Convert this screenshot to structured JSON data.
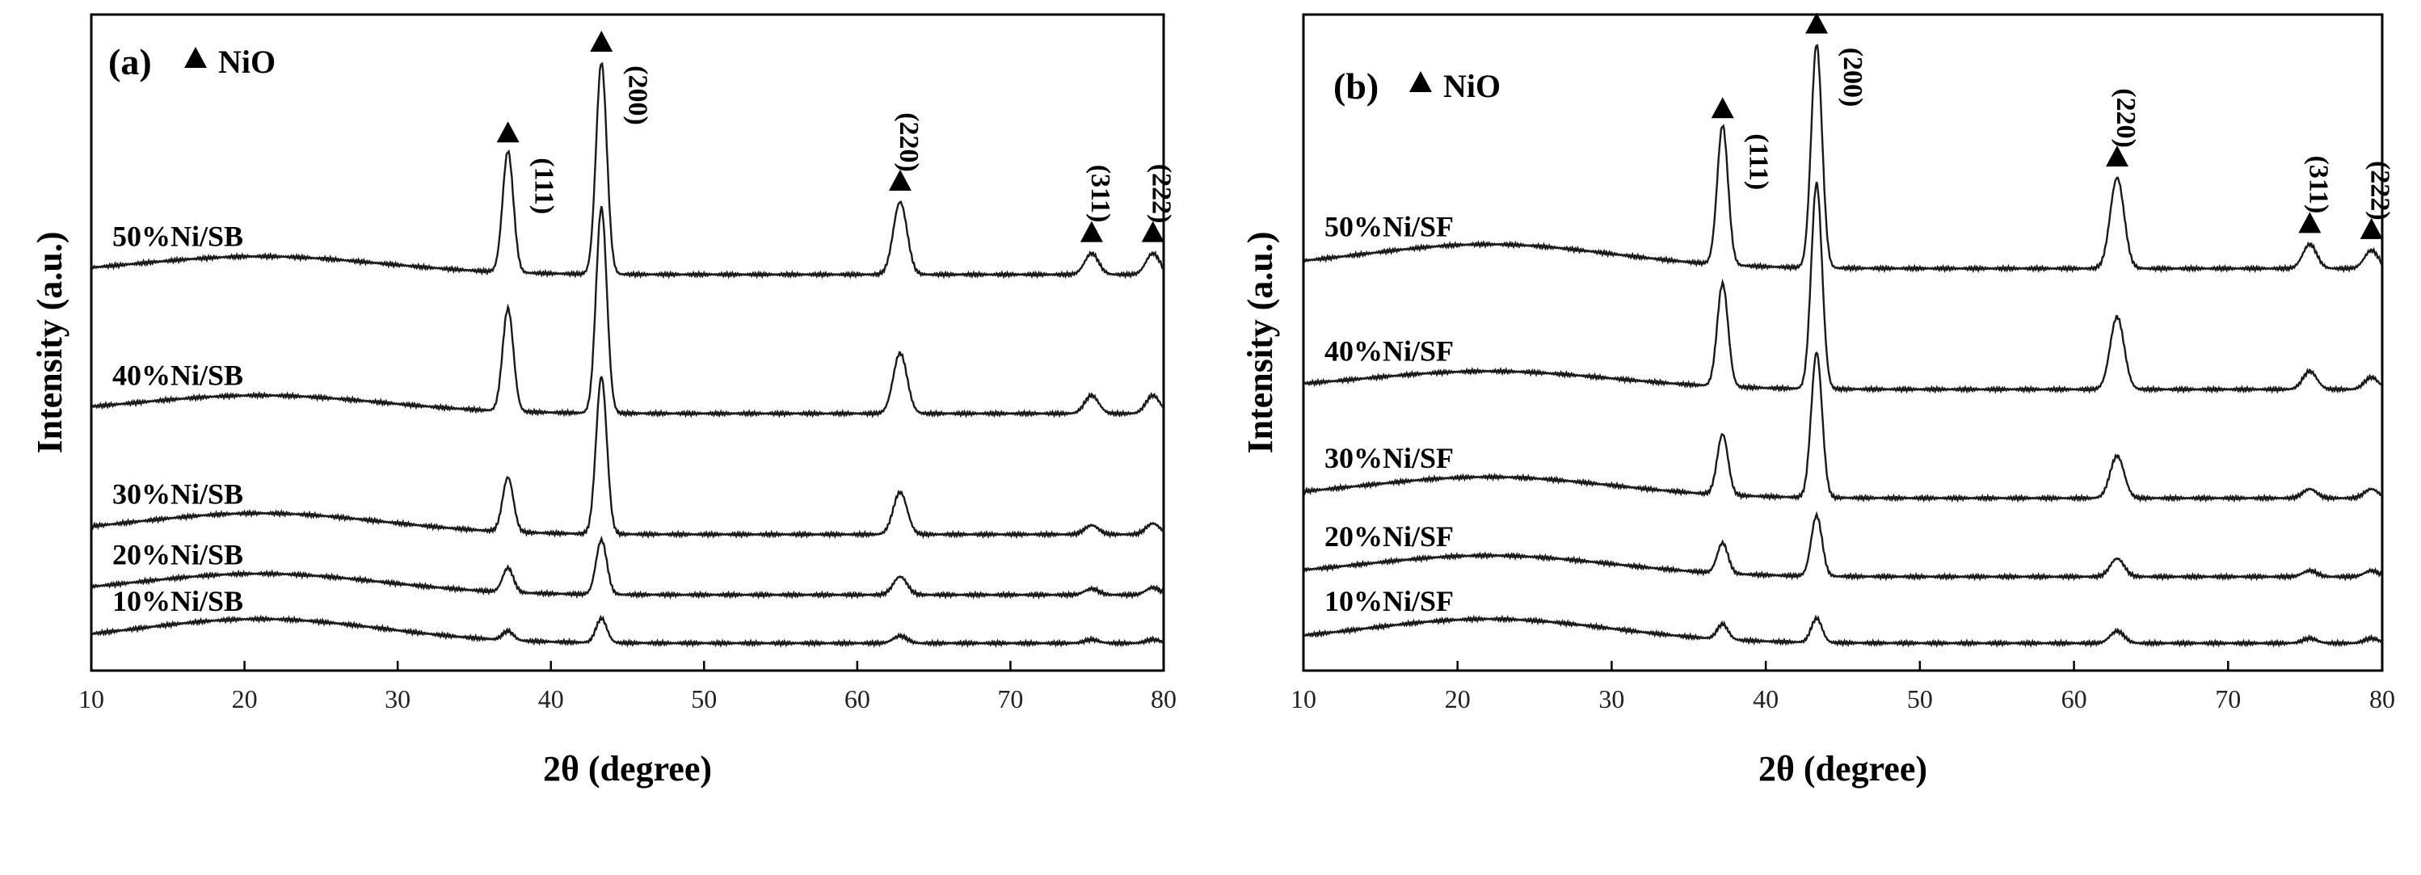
{
  "colors": {
    "line": "#1a1a1a",
    "axis": "#000000",
    "text": "#000000"
  },
  "x_axis": {
    "ticks": [
      10,
      20,
      30,
      40,
      50,
      60,
      70,
      80
    ]
  },
  "peaks": [
    {
      "hkl": "(111)",
      "two_theta": 37.2,
      "width": 0.35
    },
    {
      "hkl": "(200)",
      "two_theta": 43.3,
      "width": 0.35
    },
    {
      "hkl": "(220)",
      "two_theta": 62.8,
      "width": 0.45
    },
    {
      "hkl": "(311)",
      "two_theta": 75.3,
      "width": 0.45
    },
    {
      "hkl": "(222)",
      "two_theta": 79.3,
      "width": 0.45
    }
  ],
  "chart_data": [
    {
      "type": "line",
      "panel_label": "(a)",
      "legend_label": "NiO",
      "xlabel": "2θ (degree)",
      "ylabel": "Intensity (a.u.)",
      "xlim": [
        10,
        80
      ],
      "ylim": [
        0,
        100
      ],
      "hump_center": 21,
      "series": [
        {
          "name": "10%Ni/SB",
          "baseline": 4,
          "hump": 4,
          "peaks": [
            1.5,
            4,
            1.2,
            0.6,
            0.6
          ]
        },
        {
          "name": "20%Ni/SB",
          "baseline": 12,
          "hump": 3.5,
          "peaks": [
            4,
            9,
            3,
            1,
            1.2
          ]
        },
        {
          "name": "30%Ni/SB",
          "baseline": 22,
          "hump": 3.5,
          "peaks": [
            9,
            26,
            7,
            1.5,
            1.8
          ]
        },
        {
          "name": "40%Ni/SB",
          "baseline": 42,
          "hump": 3,
          "peaks": [
            17,
            34,
            10,
            3,
            3
          ]
        },
        {
          "name": "50%Ni/SB",
          "baseline": 65,
          "hump": 3,
          "peaks": [
            20,
            35,
            12,
            3.5,
            3.5
          ]
        }
      ]
    },
    {
      "type": "line",
      "panel_label": "(b)",
      "legend_label": "NiO",
      "xlabel": "2θ (degree)",
      "ylabel": "Intensity (a.u.)",
      "xlim": [
        10,
        80
      ],
      "ylim": [
        0,
        100
      ],
      "hump_center": 22,
      "series": [
        {
          "name": "10%Ni/SF",
          "baseline": 4,
          "hump": 4,
          "peaks": [
            2.5,
            4,
            2,
            0.8,
            0.8
          ]
        },
        {
          "name": "20%Ni/SF",
          "baseline": 15,
          "hump": 3.5,
          "peaks": [
            5,
            10,
            3,
            1,
            1
          ]
        },
        {
          "name": "30%Ni/SF",
          "baseline": 28,
          "hump": 3.5,
          "peaks": [
            10,
            24,
            7,
            1.5,
            1.5
          ]
        },
        {
          "name": "40%Ni/SF",
          "baseline": 46,
          "hump": 3,
          "peaks": [
            17,
            34,
            12,
            3,
            2
          ]
        },
        {
          "name": "50%Ni/SF",
          "baseline": 66,
          "hump": 4,
          "peaks": [
            23,
            37,
            15,
            4,
            3
          ]
        }
      ]
    }
  ]
}
